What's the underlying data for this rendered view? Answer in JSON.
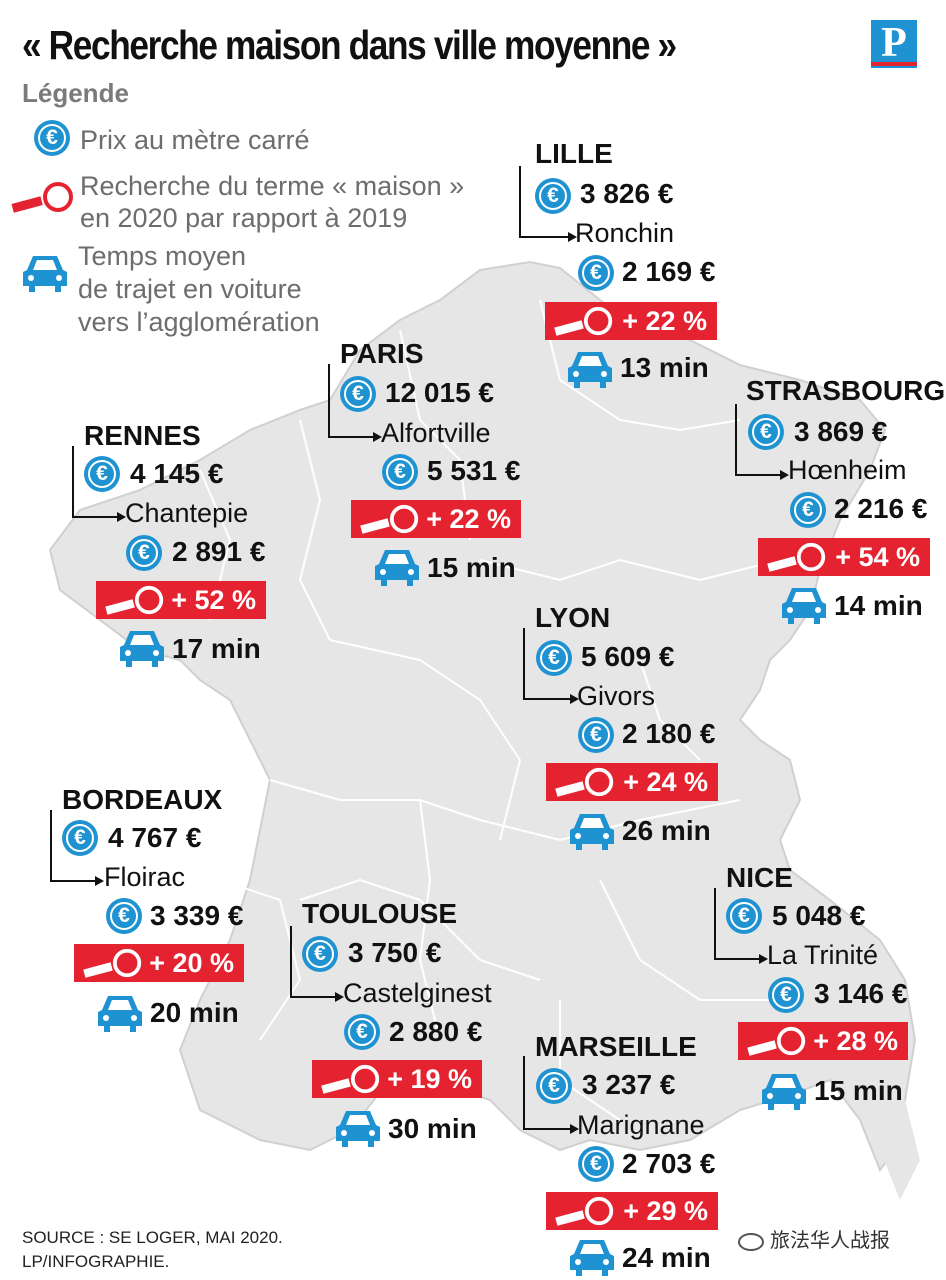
{
  "title": "« Recherche maison dans ville moyenne »",
  "logo": "P",
  "legend": {
    "title": "Légende",
    "price": "Prix au mètre carré",
    "search_line1": "Recherche du terme « maison »",
    "search_line2": "en 2020 par rapport à 2019",
    "time_line1": "Temps moyen",
    "time_line2": "de trajet en voiture",
    "time_line3": "vers l’agglomération"
  },
  "euro_symbol": "€",
  "cities": {
    "lille": {
      "name": "LILLE",
      "price": "3 826 €",
      "suburb": "Ronchin",
      "suburb_price": "2 169 €",
      "search": "+ 22 %",
      "time": "13 min"
    },
    "paris": {
      "name": "PARIS",
      "price": "12 015 €",
      "suburb": "Alfortville",
      "suburb_price": "5 531 €",
      "search": "+ 22 %",
      "time": "15 min"
    },
    "strasbourg": {
      "name": "STRASBOURG",
      "price": "3 869 €",
      "suburb": "Hœnheim",
      "suburb_price": "2 216 €",
      "search": "+ 54 %",
      "time": "14 min"
    },
    "rennes": {
      "name": "RENNES",
      "price": "4 145 €",
      "suburb": "Chantepie",
      "suburb_price": "2 891 €",
      "search": "+ 52 %",
      "time": "17 min"
    },
    "lyon": {
      "name": "LYON",
      "price": "5 609 €",
      "suburb": "Givors",
      "suburb_price": "2 180 €",
      "search": "+ 24 %",
      "time": "26 min"
    },
    "bordeaux": {
      "name": "BORDEAUX",
      "price": "4 767 €",
      "suburb": "Floirac",
      "suburb_price": "3 339 €",
      "search": "+ 20 %",
      "time": "20 min"
    },
    "toulouse": {
      "name": "TOULOUSE",
      "price": "3 750 €",
      "suburb": "Castelginest",
      "suburb_price": "2 880 €",
      "search": "+ 19 %",
      "time": "30 min"
    },
    "nice": {
      "name": "NICE",
      "price": "5 048 €",
      "suburb": "La Trinité",
      "suburb_price": "3 146 €",
      "search": "+ 28 %",
      "time": "15 min"
    },
    "marseille": {
      "name": "MARSEILLE",
      "price": "3 237 €",
      "suburb": "Marignane",
      "suburb_price": "2 703 €",
      "search": "+ 29 %",
      "time": "24 min"
    }
  },
  "source_line1": "SOURCE : SE LOGER, MAI 2020.",
  "source_line2": "LP/INFOGRAPHIE.",
  "watermark": "旅法华人战报",
  "colors": {
    "accent_blue": "#1f93d1",
    "accent_red": "#e52330",
    "map_fill": "#e6e6e6",
    "border": "#ffffff"
  }
}
